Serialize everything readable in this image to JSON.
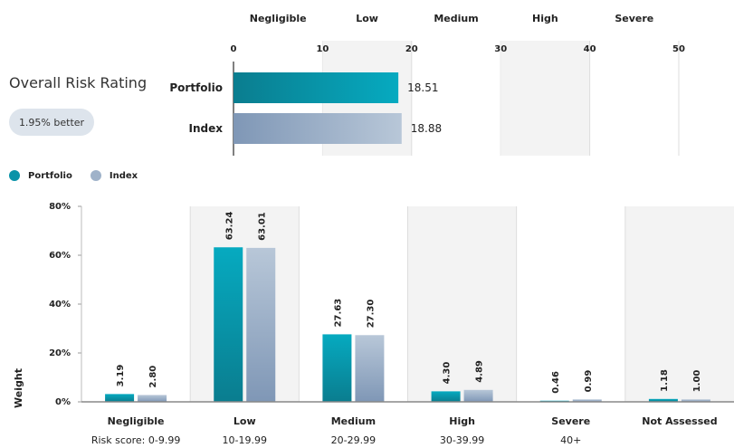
{
  "overall": {
    "title": "Overall Risk Rating",
    "badge": "1.95% better"
  },
  "legend": {
    "portfolio": "Portfolio",
    "index": "Index"
  },
  "colors": {
    "portfolio": "#0a93a8",
    "index": "#9fb2c9",
    "band": "#f3f3f3",
    "axis": "#777777"
  },
  "chart_data": [
    {
      "type": "bar",
      "orientation": "horizontal",
      "band_labels": [
        "Negligible",
        "Low",
        "Medium",
        "High",
        "Severe"
      ],
      "ticks": [
        "0",
        "10",
        "20",
        "30",
        "40",
        "50"
      ],
      "xlim": [
        0,
        50
      ],
      "categories": [
        "Portfolio",
        "Index"
      ],
      "values": [
        18.51,
        18.88
      ],
      "value_labels": [
        "18.51",
        "18.88"
      ]
    },
    {
      "type": "bar",
      "categories": [
        "Negligible",
        "Low",
        "Medium",
        "High",
        "Severe",
        "Not Assessed"
      ],
      "score_labels": [
        "Risk score: 0-9.99",
        "10-19.99",
        "20-29.99",
        "30-39.99",
        "40+",
        ""
      ],
      "series": [
        {
          "name": "Portfolio",
          "values": [
            3.19,
            63.24,
            27.63,
            4.3,
            0.46,
            1.18
          ],
          "labels": [
            "3.19",
            "63.24",
            "27.63",
            "4.30",
            "0.46",
            "1.18"
          ]
        },
        {
          "name": "Index",
          "values": [
            2.8,
            63.01,
            27.3,
            4.89,
            0.99,
            1.0
          ],
          "labels": [
            "2.80",
            "63.01",
            "27.30",
            "4.89",
            "0.99",
            "1.00"
          ]
        }
      ],
      "ylabel": "Weight",
      "ylim": [
        0,
        80
      ],
      "yticks": [
        "0%",
        "20%",
        "40%",
        "60%",
        "80%"
      ],
      "yticks_values": [
        0,
        20,
        40,
        60,
        80
      ],
      "legend_position": "top-left"
    }
  ]
}
